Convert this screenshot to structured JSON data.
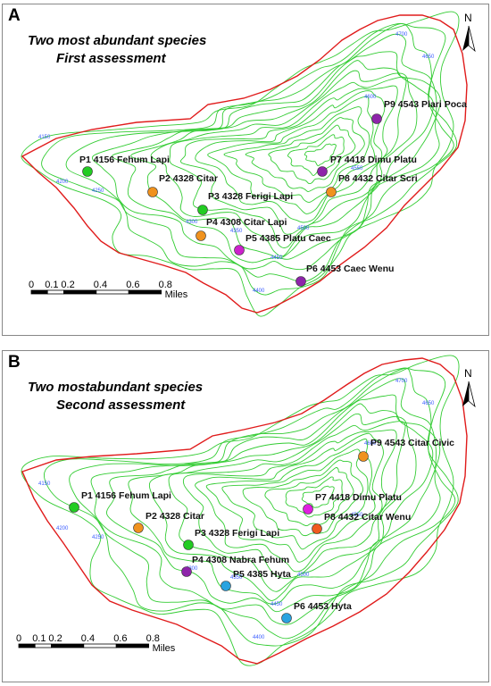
{
  "panels": [
    {
      "letter": "A",
      "title_line1": "Two most abundant species",
      "title_line2": "First assessment",
      "north": "N",
      "scale": {
        "ticks": [
          "0",
          "0.1",
          "0.2",
          "0.4",
          "0.6",
          "0.8"
        ],
        "unit": "Miles"
      },
      "contour_labels": [
        "4700",
        "4650",
        "4600",
        "4550",
        "4500",
        "4450",
        "4400",
        "4350",
        "4300",
        "4250",
        "4200",
        "4150"
      ],
      "points": [
        {
          "id": "P1",
          "elev": "4156",
          "species": "Fehum Lapi",
          "label": "P1 4156 Fehum Lapi",
          "color": "#22cc22"
        },
        {
          "id": "P2",
          "elev": "4328",
          "species": "Citar",
          "label": "P2 4328 Citar",
          "color": "#f0921e"
        },
        {
          "id": "P3",
          "elev": "4328",
          "species": "Ferigi Lapi",
          "label": "P3 4328 Ferigi Lapi",
          "color": "#22cc22"
        },
        {
          "id": "P4",
          "elev": "4308",
          "species": "Citar Lapi",
          "label": "P4 4308 Citar Lapi",
          "color": "#f0921e"
        },
        {
          "id": "P5",
          "elev": "4385",
          "species": "Platu Caec",
          "label": "P5 4385 Platu Caec",
          "color": "#cc22cc"
        },
        {
          "id": "P6",
          "elev": "4453",
          "species": "Caec Wenu",
          "label": "P6 4453 Caec Wenu",
          "color": "#8e24aa"
        },
        {
          "id": "P7",
          "elev": "4418",
          "species": "Dimu Platu",
          "label": "P7 4418 Dimu Platu",
          "color": "#8e24aa"
        },
        {
          "id": "P8",
          "elev": "4432",
          "species": "Citar Scri",
          "label": "P8 4432 Citar Scri",
          "color": "#f0921e"
        },
        {
          "id": "P9",
          "elev": "4543",
          "species": "Plari Poca",
          "label": "P9 4543 Plari Poca",
          "color": "#8e24aa"
        }
      ]
    },
    {
      "letter": "B",
      "title_line1": "Two mostabundant species",
      "title_line2": "Second assessment",
      "north": "N",
      "scale": {
        "ticks": [
          "0",
          "0.1",
          "0.2",
          "0.4",
          "0.6",
          "0.8"
        ],
        "unit": "Miles"
      },
      "contour_labels": [
        "4700",
        "4650",
        "4600",
        "4550",
        "4500",
        "4450",
        "4400",
        "4350",
        "4300",
        "4250",
        "4200",
        "4150"
      ],
      "points": [
        {
          "id": "P1",
          "elev": "4156",
          "species": "Fehum Lapi",
          "label": "P1 4156 Fehum Lapi",
          "color": "#22cc22"
        },
        {
          "id": "P2",
          "elev": "4328",
          "species": "Citar",
          "label": "P2 4328 Citar",
          "color": "#f0921e"
        },
        {
          "id": "P3",
          "elev": "4328",
          "species": "Ferigi Lapi",
          "label": "P3 4328 Ferigi Lapi",
          "color": "#22cc22"
        },
        {
          "id": "P4",
          "elev": "4308",
          "species": "Nabra Fehum",
          "label": "P4 4308 Nabra Fehum",
          "color": "#8e24aa"
        },
        {
          "id": "P5",
          "elev": "4385",
          "species": "Hyta",
          "label": "P5 4385 Hyta",
          "color": "#29a3e0"
        },
        {
          "id": "P6",
          "elev": "4453",
          "species": "Hyta",
          "label": "P6 4453 Hyta",
          "color": "#29a3e0"
        },
        {
          "id": "P7",
          "elev": "4418",
          "species": "Dimu Platu",
          "label": "P7 4418 Dimu Platu",
          "color": "#e020e0"
        },
        {
          "id": "P8",
          "elev": "4432",
          "species": "Citar Wenu",
          "label": "P8 4432 Citar Wenu",
          "color": "#f05a1e"
        },
        {
          "id": "P9",
          "elev": "4543",
          "species": "Citar Civic",
          "label": "P9 4543 Citar Civic",
          "color": "#f0921e"
        }
      ]
    }
  ]
}
